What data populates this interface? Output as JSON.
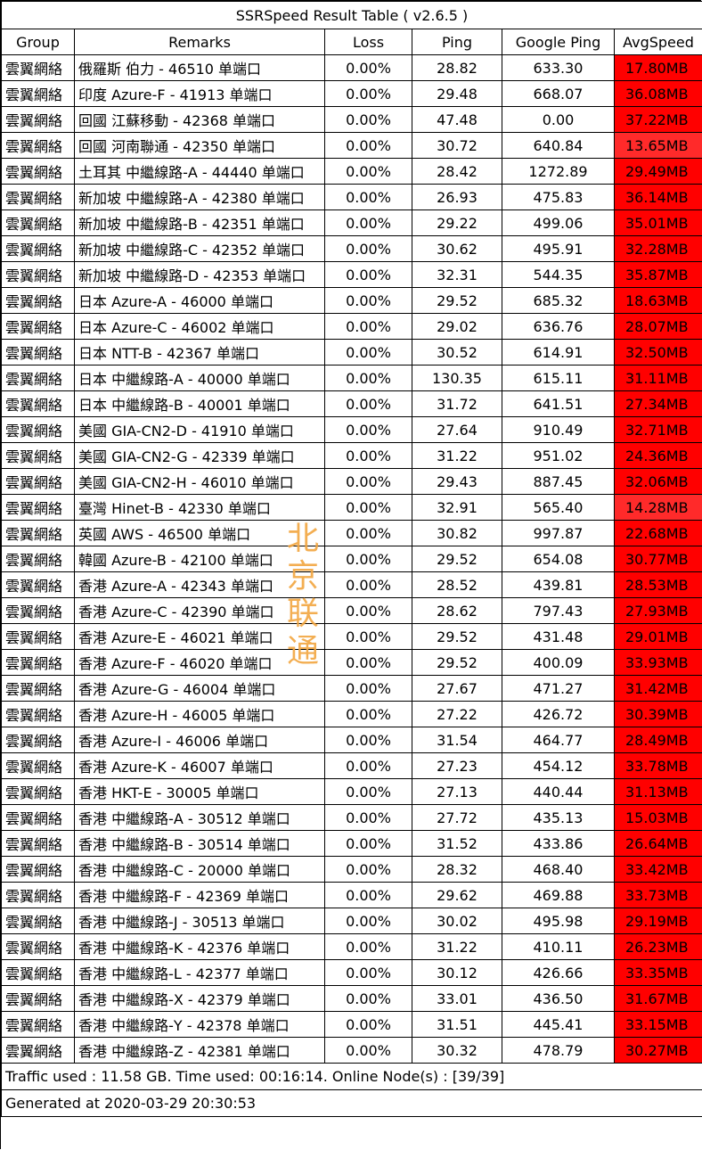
{
  "title": "SSRSpeed Result Table ( v2.6.5 )",
  "headers": [
    "Group",
    "Remarks",
    "Loss",
    "Ping",
    "Google Ping",
    "AvgSpeed"
  ],
  "colors": {
    "speed_cell": "#ff0000",
    "speed_cell_light": "#ff2a2a",
    "stamp": "#f2a640"
  },
  "rows": [
    {
      "group": "雲翼網絡",
      "remarks": "俄羅斯 伯力 - 46510 单端口",
      "loss": "0.00%",
      "ping": "28.82",
      "google_ping": "633.30",
      "speed": "17.80MB"
    },
    {
      "group": "雲翼網絡",
      "remarks": "印度 Azure-F - 41913 单端口",
      "loss": "0.00%",
      "ping": "29.48",
      "google_ping": "668.07",
      "speed": "36.08MB"
    },
    {
      "group": "雲翼網絡",
      "remarks": "回國 江蘇移動 - 42368 单端口",
      "loss": "0.00%",
      "ping": "47.48",
      "google_ping": "0.00",
      "speed": "37.22MB"
    },
    {
      "group": "雲翼網絡",
      "remarks": "回國 河南聯通 - 42350 单端口",
      "loss": "0.00%",
      "ping": "30.72",
      "google_ping": "640.84",
      "speed": "13.65MB"
    },
    {
      "group": "雲翼網絡",
      "remarks": "土耳其 中繼線路-A - 44440 单端口",
      "loss": "0.00%",
      "ping": "28.42",
      "google_ping": "1272.89",
      "speed": "29.49MB"
    },
    {
      "group": "雲翼網絡",
      "remarks": "新加坡 中繼線路-A - 42380 单端口",
      "loss": "0.00%",
      "ping": "26.93",
      "google_ping": "475.83",
      "speed": "36.14MB"
    },
    {
      "group": "雲翼網絡",
      "remarks": "新加坡 中繼線路-B - 42351 单端口",
      "loss": "0.00%",
      "ping": "29.22",
      "google_ping": "499.06",
      "speed": "35.01MB"
    },
    {
      "group": "雲翼網絡",
      "remarks": "新加坡 中繼線路-C - 42352 单端口",
      "loss": "0.00%",
      "ping": "30.62",
      "google_ping": "495.91",
      "speed": "32.28MB"
    },
    {
      "group": "雲翼網絡",
      "remarks": "新加坡 中繼線路-D - 42353 单端口",
      "loss": "0.00%",
      "ping": "32.31",
      "google_ping": "544.35",
      "speed": "35.87MB"
    },
    {
      "group": "雲翼網絡",
      "remarks": "日本 Azure-A - 46000 单端口",
      "loss": "0.00%",
      "ping": "29.52",
      "google_ping": "685.32",
      "speed": "18.63MB"
    },
    {
      "group": "雲翼網絡",
      "remarks": "日本 Azure-C - 46002 单端口",
      "loss": "0.00%",
      "ping": "29.02",
      "google_ping": "636.76",
      "speed": "28.07MB"
    },
    {
      "group": "雲翼網絡",
      "remarks": "日本 NTT-B - 42367 单端口",
      "loss": "0.00%",
      "ping": "30.52",
      "google_ping": "614.91",
      "speed": "32.50MB"
    },
    {
      "group": "雲翼網絡",
      "remarks": "日本 中繼線路-A - 40000 单端口",
      "loss": "0.00%",
      "ping": "130.35",
      "google_ping": "615.11",
      "speed": "31.11MB"
    },
    {
      "group": "雲翼網絡",
      "remarks": "日本 中繼線路-B - 40001 单端口",
      "loss": "0.00%",
      "ping": "31.72",
      "google_ping": "641.51",
      "speed": "27.34MB"
    },
    {
      "group": "雲翼網絡",
      "remarks": "美國 GIA-CN2-D - 41910 单端口",
      "loss": "0.00%",
      "ping": "27.64",
      "google_ping": "910.49",
      "speed": "32.71MB"
    },
    {
      "group": "雲翼網絡",
      "remarks": "美國 GIA-CN2-G - 42339 单端口",
      "loss": "0.00%",
      "ping": "31.22",
      "google_ping": "951.02",
      "speed": "24.36MB"
    },
    {
      "group": "雲翼網絡",
      "remarks": "美國 GIA-CN2-H - 46010 单端口",
      "loss": "0.00%",
      "ping": "29.43",
      "google_ping": "887.45",
      "speed": "32.06MB"
    },
    {
      "group": "雲翼網絡",
      "remarks": "臺灣 Hinet-B - 42330 单端口",
      "loss": "0.00%",
      "ping": "32.91",
      "google_ping": "565.40",
      "speed": "14.28MB"
    },
    {
      "group": "雲翼網絡",
      "remarks": "英國 AWS - 46500 单端口",
      "loss": "0.00%",
      "ping": "30.82",
      "google_ping": "997.87",
      "speed": "22.68MB"
    },
    {
      "group": "雲翼網絡",
      "remarks": "韓國 Azure-B - 42100 单端口",
      "loss": "0.00%",
      "ping": "29.52",
      "google_ping": "654.08",
      "speed": "30.77MB"
    },
    {
      "group": "雲翼網絡",
      "remarks": "香港 Azure-A - 42343 单端口",
      "loss": "0.00%",
      "ping": "28.52",
      "google_ping": "439.81",
      "speed": "28.53MB"
    },
    {
      "group": "雲翼網絡",
      "remarks": "香港 Azure-C - 42390 单端口",
      "loss": "0.00%",
      "ping": "28.62",
      "google_ping": "797.43",
      "speed": "27.93MB"
    },
    {
      "group": "雲翼網絡",
      "remarks": "香港 Azure-E - 46021 单端口",
      "loss": "0.00%",
      "ping": "29.52",
      "google_ping": "431.48",
      "speed": "29.01MB"
    },
    {
      "group": "雲翼網絡",
      "remarks": "香港 Azure-F - 46020 单端口",
      "loss": "0.00%",
      "ping": "29.52",
      "google_ping": "400.09",
      "speed": "33.93MB"
    },
    {
      "group": "雲翼網絡",
      "remarks": "香港 Azure-G - 46004 单端口",
      "loss": "0.00%",
      "ping": "27.67",
      "google_ping": "471.27",
      "speed": "31.42MB"
    },
    {
      "group": "雲翼網絡",
      "remarks": "香港 Azure-H - 46005 单端口",
      "loss": "0.00%",
      "ping": "27.22",
      "google_ping": "426.72",
      "speed": "30.39MB"
    },
    {
      "group": "雲翼網絡",
      "remarks": "香港 Azure-I - 46006 单端口",
      "loss": "0.00%",
      "ping": "31.54",
      "google_ping": "464.77",
      "speed": "28.49MB"
    },
    {
      "group": "雲翼網絡",
      "remarks": "香港 Azure-K - 46007 单端口",
      "loss": "0.00%",
      "ping": "27.23",
      "google_ping": "454.12",
      "speed": "33.78MB"
    },
    {
      "group": "雲翼網絡",
      "remarks": "香港 HKT-E - 30005 单端口",
      "loss": "0.00%",
      "ping": "27.13",
      "google_ping": "440.44",
      "speed": "31.13MB"
    },
    {
      "group": "雲翼網絡",
      "remarks": "香港 中繼線路-A - 30512 单端口",
      "loss": "0.00%",
      "ping": "27.72",
      "google_ping": "435.13",
      "speed": "15.03MB"
    },
    {
      "group": "雲翼網絡",
      "remarks": "香港 中繼線路-B - 30514 单端口",
      "loss": "0.00%",
      "ping": "31.52",
      "google_ping": "433.86",
      "speed": "26.64MB"
    },
    {
      "group": "雲翼網絡",
      "remarks": "香港 中繼線路-C - 20000 单端口",
      "loss": "0.00%",
      "ping": "28.32",
      "google_ping": "468.40",
      "speed": "33.42MB"
    },
    {
      "group": "雲翼網絡",
      "remarks": "香港 中繼線路-F - 42369 单端口",
      "loss": "0.00%",
      "ping": "29.62",
      "google_ping": "469.88",
      "speed": "33.73MB"
    },
    {
      "group": "雲翼網絡",
      "remarks": "香港 中繼線路-J - 30513 单端口",
      "loss": "0.00%",
      "ping": "30.02",
      "google_ping": "495.98",
      "speed": "29.19MB"
    },
    {
      "group": "雲翼網絡",
      "remarks": "香港 中繼線路-K - 42376 单端口",
      "loss": "0.00%",
      "ping": "31.22",
      "google_ping": "410.11",
      "speed": "26.23MB"
    },
    {
      "group": "雲翼網絡",
      "remarks": "香港 中繼線路-L - 42377 单端口",
      "loss": "0.00%",
      "ping": "30.12",
      "google_ping": "426.66",
      "speed": "33.35MB"
    },
    {
      "group": "雲翼網絡",
      "remarks": "香港 中繼線路-X - 42379 单端口",
      "loss": "0.00%",
      "ping": "33.01",
      "google_ping": "436.50",
      "speed": "31.67MB"
    },
    {
      "group": "雲翼網絡",
      "remarks": "香港 中繼線路-Y - 42378 单端口",
      "loss": "0.00%",
      "ping": "31.51",
      "google_ping": "445.41",
      "speed": "33.15MB"
    },
    {
      "group": "雲翼網絡",
      "remarks": "香港 中繼線路-Z - 42381 单端口",
      "loss": "0.00%",
      "ping": "30.32",
      "google_ping": "478.79",
      "speed": "30.27MB"
    }
  ],
  "footer": {
    "traffic": "Traffic used : 11.58 GB. Time used: 00:16:14. Online Node(s) : [39/39]",
    "generated": "Generated at 2020-03-29 20:30:53"
  },
  "stamp_text": [
    "北",
    "京",
    "联",
    "通"
  ]
}
